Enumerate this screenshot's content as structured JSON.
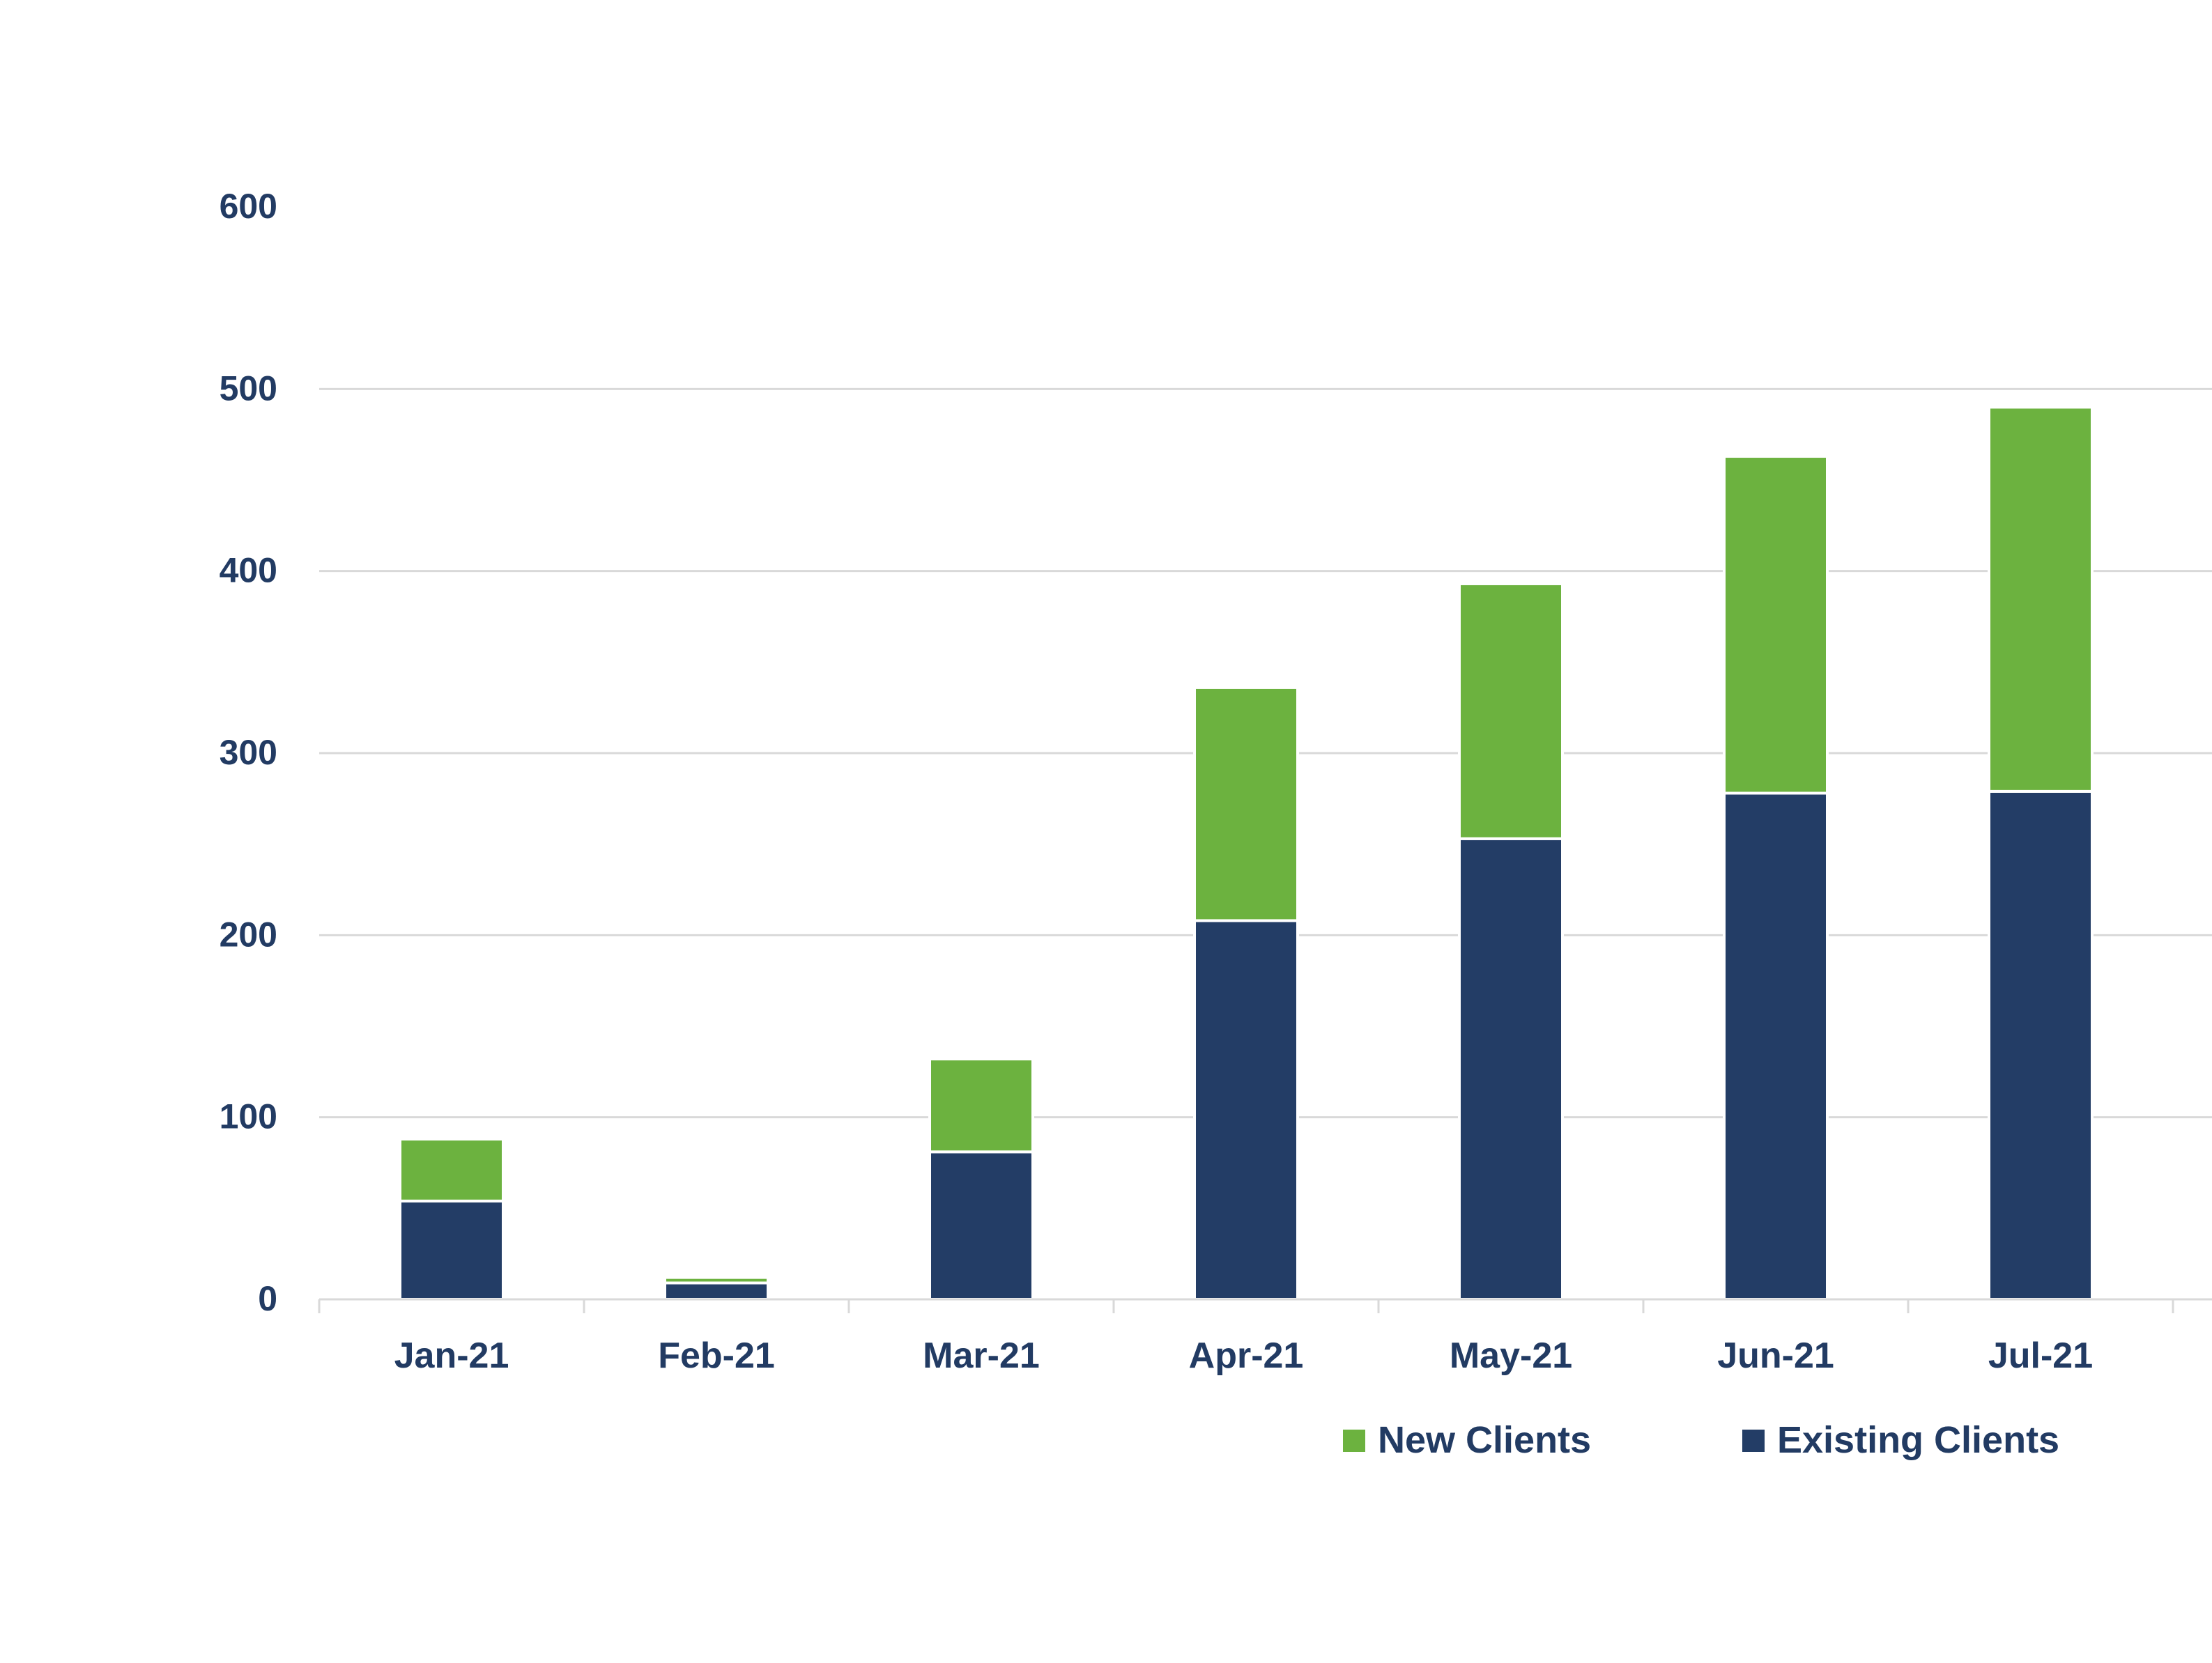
{
  "chart_data": {
    "type": "bar",
    "stacked": true,
    "categories": [
      "Jan-21",
      "Feb-21",
      "Mar-21",
      "Apr-21",
      "May-21",
      "Jun-21",
      "Jul-21"
    ],
    "series": [
      {
        "name": "Existing Clients",
        "color": "#233d66",
        "values": [
          54,
          9,
          81,
          208,
          253,
          278,
          279
        ]
      },
      {
        "name": "New Clients",
        "color": "#6cb23f",
        "values": [
          34,
          3,
          51,
          128,
          140,
          185,
          211
        ]
      }
    ],
    "ylim": [
      0,
      600
    ],
    "yticks": [
      0,
      100,
      200,
      300,
      400,
      500,
      600
    ],
    "grid": true,
    "legend": {
      "position": "bottom-right",
      "order": [
        "New Clients",
        "Existing Clients"
      ]
    },
    "title": "",
    "xlabel": "",
    "ylabel": ""
  }
}
